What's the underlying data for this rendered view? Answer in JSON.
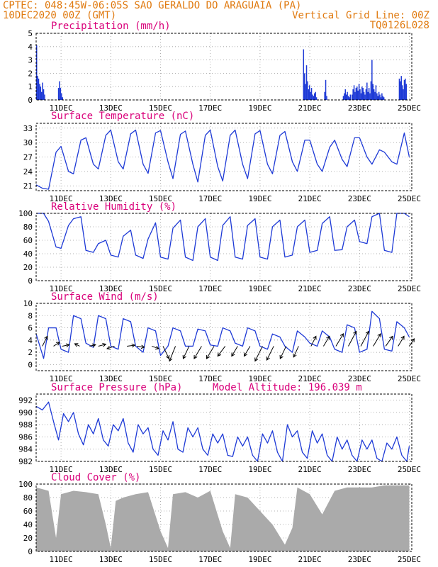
{
  "header": {
    "station": "CPTEC:   048:45W-06:05S  SAO GERALDO DO ARAGUAIA (PA)",
    "date": "10DEC2020 00Z (GMT)",
    "grid_note": "Vertical Grid Line: 00Z",
    "model": "TQ0126L028"
  },
  "colors": {
    "header": "#e07a10",
    "title": "#d9007a",
    "line": "#1e3ad6",
    "cloud": "#aaaaaa",
    "arrow": "#000000"
  },
  "x_ticks": [
    "11DEC",
    "13DEC",
    "15DEC",
    "17DEC",
    "19DEC",
    "21DEC",
    "23DEC",
    "25DEC"
  ],
  "x_tick_days": [
    1,
    3,
    5,
    7,
    9,
    11,
    13,
    15
  ],
  "chart_data": [
    {
      "id": "precipitation",
      "type": "bar",
      "title": "Precipitation (mm/h)",
      "x_unit": "days since 10DEC2020 00Z",
      "xlim": [
        0,
        15.1
      ],
      "ylim": [
        0,
        5
      ],
      "y_ticks": [
        0,
        1,
        2,
        3,
        4,
        5
      ],
      "x": [
        0.02,
        0.06,
        0.1,
        0.14,
        0.18,
        0.22,
        0.26,
        0.3,
        0.34,
        0.9,
        0.94,
        0.98,
        1.02,
        1.06,
        10.75,
        10.79,
        10.83,
        10.87,
        10.91,
        10.95,
        10.99,
        11.03,
        11.07,
        11.11,
        11.15,
        11.19,
        11.23,
        11.27,
        11.6,
        11.64,
        11.68,
        12.35,
        12.39,
        12.43,
        12.47,
        12.51,
        12.55,
        12.59,
        12.63,
        12.7,
        12.74,
        12.78,
        12.82,
        12.86,
        12.9,
        12.94,
        12.98,
        13.02,
        13.06,
        13.1,
        13.14,
        13.18,
        13.22,
        13.26,
        13.3,
        13.34,
        13.38,
        13.42,
        13.46,
        13.5,
        13.54,
        13.58,
        13.62,
        13.66,
        13.7,
        13.74,
        13.78,
        13.82,
        13.86,
        13.9,
        13.94,
        13.98,
        14.6,
        14.64,
        14.68,
        14.72,
        14.76,
        14.8,
        14.84,
        14.88
      ],
      "values": [
        4.1,
        1.8,
        1.6,
        1.2,
        1.0,
        0.6,
        1.3,
        0.8,
        0.4,
        0.9,
        1.4,
        0.9,
        0.5,
        0.2,
        3.8,
        2.0,
        1.2,
        2.6,
        1.4,
        0.8,
        1.1,
        0.6,
        0.9,
        0.4,
        0.3,
        0.5,
        0.6,
        0.2,
        0.6,
        1.5,
        0.3,
        0.3,
        0.5,
        0.8,
        0.4,
        0.6,
        0.3,
        0.2,
        0.4,
        0.4,
        0.8,
        1.1,
        0.6,
        0.9,
        1.0,
        0.7,
        1.2,
        0.8,
        0.5,
        1.0,
        0.9,
        0.6,
        0.4,
        0.8,
        1.3,
        0.6,
        0.9,
        0.5,
        1.4,
        3.0,
        1.2,
        0.8,
        0.6,
        1.1,
        0.5,
        0.3,
        0.6,
        0.4,
        0.2,
        0.5,
        0.3,
        0.2,
        1.6,
        1.4,
        1.8,
        1.1,
        0.8,
        1.5,
        1.6,
        1.2
      ]
    },
    {
      "id": "temperature",
      "type": "line",
      "title": "Surface Temperature (nC)",
      "x_unit": "days since 10DEC2020 00Z",
      "xlim": [
        0,
        15.1
      ],
      "ylim": [
        20,
        34
      ],
      "y_ticks": [
        21,
        24,
        27,
        30,
        33
      ],
      "x": [
        0,
        0.25,
        0.5,
        0.8,
        1.0,
        1.3,
        1.5,
        1.8,
        2.0,
        2.3,
        2.5,
        2.8,
        3.0,
        3.3,
        3.5,
        3.8,
        4.0,
        4.3,
        4.5,
        4.8,
        5.0,
        5.3,
        5.5,
        5.8,
        6.0,
        6.3,
        6.5,
        6.8,
        7.0,
        7.3,
        7.5,
        7.8,
        8.0,
        8.3,
        8.5,
        8.8,
        9.0,
        9.3,
        9.5,
        9.8,
        10.0,
        10.3,
        10.5,
        10.8,
        11.0,
        11.3,
        11.5,
        11.8,
        12.0,
        12.3,
        12.5,
        12.8,
        13.0,
        13.3,
        13.5,
        13.8,
        14.0,
        14.3,
        14.5,
        14.8,
        15.0
      ],
      "values": [
        21.2,
        20.5,
        20.3,
        28.0,
        29.2,
        24.0,
        23.5,
        30.5,
        31.0,
        25.5,
        24.5,
        31.5,
        32.6,
        26.0,
        24.5,
        31.8,
        32.6,
        25.5,
        23.6,
        32.0,
        32.5,
        26.0,
        22.5,
        31.7,
        32.4,
        25.5,
        21.8,
        31.5,
        32.6,
        25.0,
        22.0,
        31.5,
        32.6,
        25.5,
        22.5,
        31.8,
        32.5,
        25.5,
        23.5,
        31.5,
        32.3,
        26.0,
        24.0,
        30.5,
        30.5,
        25.5,
        24.0,
        29.0,
        30.5,
        26.5,
        25.0,
        31.0,
        31.0,
        27.0,
        25.5,
        28.5,
        28.0,
        26.0,
        25.5,
        32.0,
        27.0
      ]
    },
    {
      "id": "humidity",
      "type": "line",
      "title": "Relative Humidity (%)",
      "x_unit": "days since 10DEC2020 00Z",
      "xlim": [
        0,
        15.1
      ],
      "ylim": [
        0,
        100
      ],
      "y_ticks": [
        0,
        20,
        40,
        60,
        80,
        100
      ],
      "x": [
        0,
        0.3,
        0.5,
        0.8,
        1.0,
        1.3,
        1.5,
        1.8,
        2.0,
        2.3,
        2.5,
        2.8,
        3.0,
        3.3,
        3.5,
        3.8,
        4.0,
        4.3,
        4.5,
        4.8,
        5.0,
        5.3,
        5.5,
        5.8,
        6.0,
        6.3,
        6.5,
        6.8,
        7.0,
        7.3,
        7.5,
        7.8,
        8.0,
        8.3,
        8.5,
        8.8,
        9.0,
        9.3,
        9.5,
        9.8,
        10.0,
        10.3,
        10.5,
        10.8,
        11.0,
        11.3,
        11.5,
        11.8,
        12.0,
        12.3,
        12.5,
        12.8,
        13.0,
        13.3,
        13.5,
        13.8,
        14.0,
        14.3,
        14.5,
        14.8,
        15.0
      ],
      "values": [
        100,
        100,
        88,
        50,
        48,
        82,
        92,
        95,
        45,
        42,
        55,
        60,
        38,
        35,
        66,
        75,
        38,
        33,
        62,
        86,
        35,
        32,
        78,
        90,
        35,
        30,
        80,
        92,
        35,
        30,
        82,
        95,
        35,
        32,
        82,
        92,
        35,
        32,
        80,
        90,
        35,
        38,
        80,
        90,
        42,
        45,
        85,
        95,
        45,
        46,
        80,
        90,
        58,
        55,
        95,
        100,
        45,
        42,
        100,
        100,
        95
      ]
    },
    {
      "id": "wind",
      "type": "line",
      "title": "Surface Wind (m/s)",
      "x_unit": "days since 10DEC2020 00Z",
      "xlim": [
        0,
        15.1
      ],
      "ylim": [
        -1,
        10
      ],
      "y_ticks": [
        0,
        2,
        4,
        6,
        8,
        10
      ],
      "x": [
        0,
        0.3,
        0.5,
        0.8,
        1.0,
        1.3,
        1.5,
        1.8,
        2.0,
        2.3,
        2.5,
        2.8,
        3.0,
        3.3,
        3.5,
        3.8,
        4.0,
        4.3,
        4.5,
        4.8,
        5.0,
        5.3,
        5.5,
        5.8,
        6.0,
        6.3,
        6.5,
        6.8,
        7.0,
        7.3,
        7.5,
        7.8,
        8.0,
        8.3,
        8.5,
        8.8,
        9.0,
        9.3,
        9.5,
        9.8,
        10.0,
        10.3,
        10.5,
        10.8,
        11.0,
        11.3,
        11.5,
        11.8,
        12.0,
        12.3,
        12.5,
        12.8,
        13.0,
        13.3,
        13.5,
        13.8,
        14.0,
        14.3,
        14.5,
        14.8,
        15.0
      ],
      "values": [
        5.0,
        1.0,
        6.0,
        6.0,
        2.5,
        2.0,
        8.0,
        7.5,
        3.5,
        2.8,
        8.0,
        7.5,
        3.0,
        2.5,
        7.5,
        7.0,
        3.0,
        2.0,
        6.0,
        5.5,
        1.5,
        3.0,
        6.0,
        5.5,
        3.0,
        3.0,
        5.8,
        5.5,
        3.2,
        3.0,
        6.0,
        5.5,
        3.5,
        3.0,
        6.0,
        5.5,
        3.0,
        2.5,
        5.0,
        4.5,
        3.0,
        2.0,
        5.5,
        4.5,
        3.5,
        3.0,
        5.5,
        4.5,
        2.5,
        2.0,
        6.5,
        6.0,
        2.0,
        2.5,
        8.7,
        7.5,
        2.5,
        2.2,
        7.0,
        6.0,
        4.5
      ],
      "vector_x": [
        0.25,
        0.7,
        1.05,
        1.75,
        2.15,
        2.5,
        3.15,
        3.65,
        4.05,
        4.65,
        5.1,
        5.6,
        6.15,
        6.65,
        7.15,
        7.6,
        8.1,
        8.6,
        9.1,
        9.55,
        10.05,
        10.55,
        11.05,
        11.55,
        12.05,
        12.55,
        13.05,
        13.55,
        14.05,
        14.55,
        15.0
      ],
      "vector_u": [
        1.0,
        1.2,
        1.4,
        -1.0,
        1.2,
        1.5,
        -1.5,
        1.6,
        1.5,
        1.4,
        1.2,
        -1.2,
        -1.2,
        -1.5,
        -1.5,
        -1.5,
        -1.2,
        -1.2,
        -1.5,
        -1.4,
        -1.2,
        -1.0,
        1.0,
        1.2,
        1.5,
        1.6,
        1.6,
        1.5,
        1.4,
        1.2,
        1.0
      ],
      "vector_v": [
        2.0,
        0.8,
        0.3,
        0.5,
        0.3,
        0.4,
        -0.5,
        0.2,
        -0.2,
        -0.5,
        -2.5,
        -3.0,
        -2.5,
        -2.5,
        -2.5,
        -2.0,
        -2.0,
        -2.0,
        -3.0,
        -2.8,
        -2.5,
        -2.2,
        2.0,
        2.0,
        2.5,
        3.0,
        3.0,
        2.5,
        2.0,
        2.0,
        1.5
      ]
    },
    {
      "id": "pressure",
      "type": "line",
      "title": "Surface Pressure (hPa)",
      "annotation": "Model Altitude: 196.039 m",
      "x_unit": "days since 10DEC2020 00Z",
      "xlim": [
        0,
        15.1
      ],
      "ylim": [
        982,
        993
      ],
      "y_ticks": [
        982,
        984,
        986,
        988,
        990,
        992
      ],
      "x": [
        0,
        0.25,
        0.5,
        0.7,
        0.9,
        1.1,
        1.3,
        1.5,
        1.7,
        1.9,
        2.1,
        2.3,
        2.5,
        2.7,
        2.9,
        3.1,
        3.3,
        3.5,
        3.7,
        3.9,
        4.1,
        4.3,
        4.5,
        4.7,
        4.9,
        5.1,
        5.3,
        5.5,
        5.7,
        5.9,
        6.1,
        6.3,
        6.5,
        6.7,
        6.9,
        7.1,
        7.3,
        7.5,
        7.7,
        7.9,
        8.1,
        8.3,
        8.5,
        8.7,
        8.9,
        9.1,
        9.3,
        9.5,
        9.7,
        9.9,
        10.1,
        10.3,
        10.5,
        10.7,
        10.9,
        11.1,
        11.3,
        11.5,
        11.7,
        11.9,
        12.1,
        12.3,
        12.5,
        12.7,
        12.9,
        13.1,
        13.3,
        13.5,
        13.7,
        13.9,
        14.1,
        14.3,
        14.5,
        14.7,
        14.9,
        15.0
      ],
      "values": [
        991.0,
        990.4,
        991.7,
        988.5,
        985.5,
        989.8,
        988.5,
        990.0,
        986.5,
        984.7,
        988.0,
        986.5,
        989.0,
        985.5,
        984.5,
        988.0,
        987.0,
        989.0,
        985.0,
        983.5,
        988.0,
        986.5,
        987.5,
        984.0,
        983.0,
        987.0,
        985.5,
        988.5,
        984.0,
        983.5,
        987.5,
        986.0,
        987.5,
        984.0,
        983.0,
        986.5,
        985.0,
        986.5,
        983.0,
        982.8,
        986.0,
        984.5,
        986.0,
        983.0,
        982.0,
        986.5,
        985.0,
        987.0,
        983.5,
        982.0,
        988.0,
        986.0,
        987.0,
        983.5,
        982.5,
        987.0,
        985.0,
        986.5,
        983.0,
        982.0,
        986.0,
        984.0,
        985.5,
        983.0,
        982.0,
        985.5,
        984.0,
        985.5,
        982.5,
        981.5,
        985.0,
        984.0,
        986.0,
        983.0,
        982.0,
        984.5
      ]
    },
    {
      "id": "cloud",
      "type": "area",
      "title": "Cloud Cover (%)",
      "x_unit": "days since 10DEC2020 00Z",
      "xlim": [
        0,
        15.1
      ],
      "ylim": [
        0,
        100
      ],
      "y_ticks": [
        0,
        20,
        40,
        60,
        80,
        100
      ],
      "x": [
        0,
        0.5,
        0.8,
        1.0,
        1.5,
        2.0,
        2.5,
        2.8,
        3.0,
        3.2,
        3.5,
        4.0,
        4.5,
        5.0,
        5.3,
        5.5,
        6.0,
        6.5,
        7.0,
        7.5,
        7.8,
        8.0,
        8.5,
        9.0,
        9.5,
        10.0,
        10.3,
        10.5,
        11.0,
        11.5,
        12.0,
        12.5,
        13.0,
        13.5,
        14.0,
        14.5,
        15.0
      ],
      "values": [
        95,
        90,
        20,
        85,
        90,
        88,
        85,
        40,
        5,
        75,
        80,
        85,
        88,
        30,
        5,
        85,
        88,
        80,
        90,
        30,
        5,
        85,
        80,
        60,
        40,
        10,
        35,
        95,
        85,
        55,
        90,
        95,
        95,
        95,
        98,
        98,
        98
      ]
    }
  ]
}
